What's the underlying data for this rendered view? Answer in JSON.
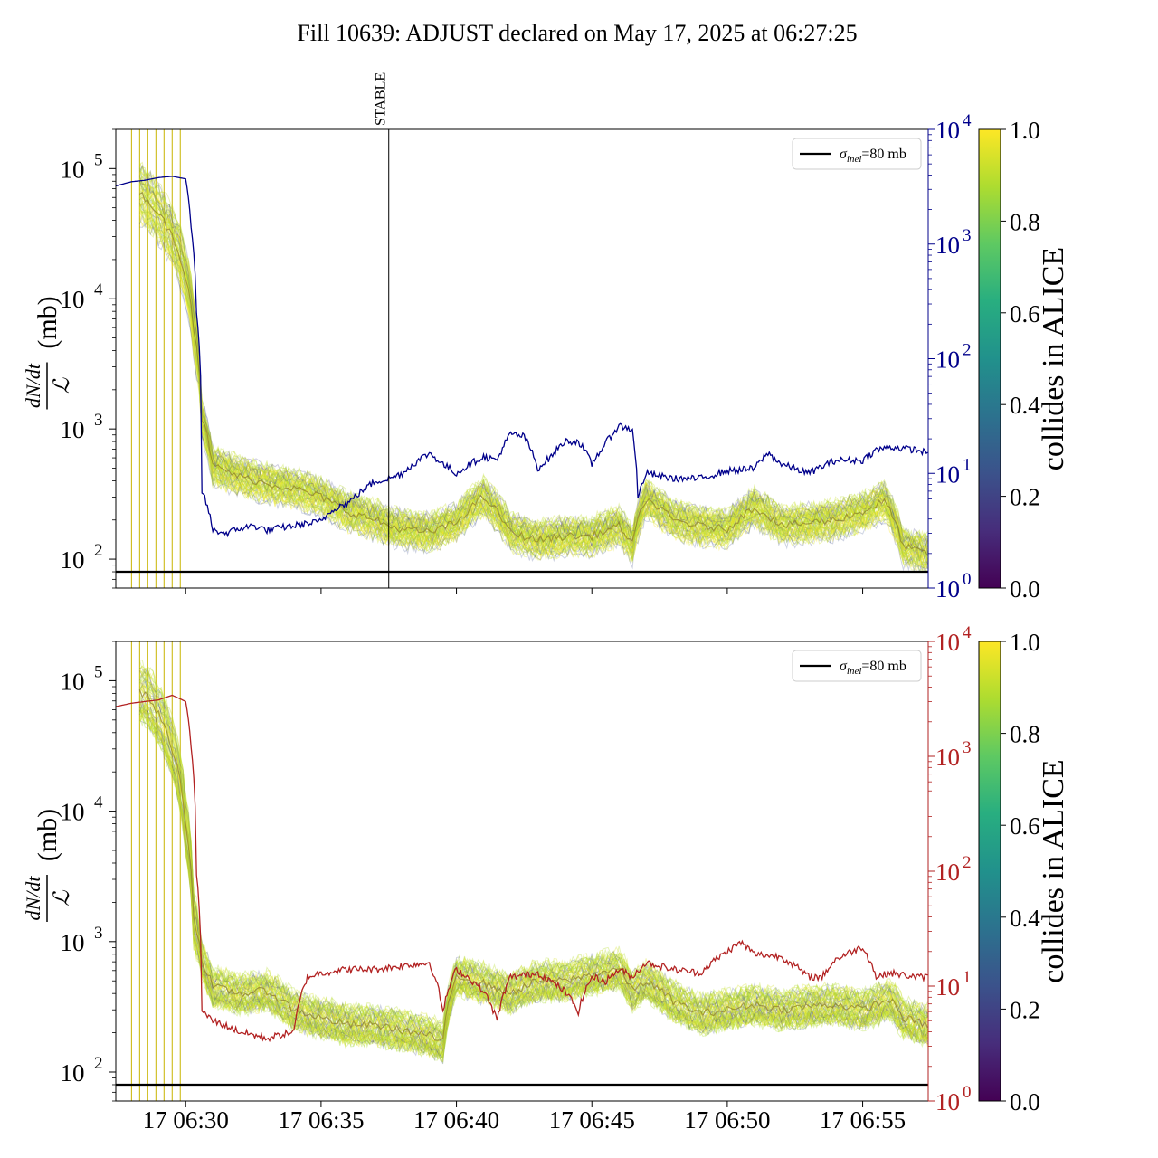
{
  "title": "Fill 10639: ADJUST declared on May 17, 2025 at 06:27:25",
  "chart_data": [
    {
      "type": "line",
      "panel": "top",
      "ylabel_fraction_num": "dN/dt",
      "ylabel_fraction_den": "ℒ",
      "ylabel_unit": "(mb)",
      "yscale": "log",
      "ylim": [
        60,
        200000
      ],
      "y_tick_labels": [
        "10",
        "10",
        "10",
        "10"
      ],
      "y_tick_exponents": [
        "2",
        "3",
        "4",
        "5"
      ],
      "right_axis": {
        "color": "#00008b",
        "yscale": "log",
        "ylim": [
          1,
          10000
        ],
        "tick_labels": [
          "10",
          "10",
          "10",
          "10",
          "10"
        ],
        "tick_exponents": [
          "0",
          "1",
          "2",
          "3",
          "4"
        ]
      },
      "xlim": [
        27.42,
        57.42
      ],
      "x_unit": "minutes after 06:00 on May 17",
      "x_tick_labels": [],
      "vline": {
        "x": 37.5,
        "label": "STABLE"
      },
      "legend": {
        "label": "σinel=80 mb",
        "label_main": "σ",
        "label_sub": "inel",
        "label_rest": "=80 mb",
        "placement": "top-right"
      },
      "hline_value": 80,
      "colorbar": {
        "label": "collides in ALICE",
        "ticks": [
          "0.0",
          "0.2",
          "0.4",
          "0.6",
          "0.8",
          "1.0"
        ],
        "colormap": "viridis"
      },
      "series_band": {
        "x": [
          27.4,
          28.5,
          29.5,
          30.3,
          30.6,
          31.0,
          32.0,
          33.0,
          34.0,
          35.0,
          36.0,
          37.0,
          37.5,
          38.0,
          39.0,
          40.0,
          41.0,
          42.0,
          43.0,
          44.0,
          45.0,
          46.0,
          46.5,
          47.0,
          48.0,
          49.0,
          50.0,
          51.0,
          52.0,
          53.0,
          54.0,
          55.0,
          55.8,
          56.5,
          57.4
        ],
        "median": [
          null,
          60000,
          30000,
          6000,
          1200,
          520,
          430,
          380,
          350,
          300,
          230,
          200,
          180,
          170,
          160,
          190,
          300,
          160,
          140,
          150,
          150,
          180,
          130,
          290,
          200,
          180,
          170,
          250,
          180,
          190,
          200,
          230,
          280,
          125,
          110
        ]
      },
      "series_right": {
        "name": "",
        "x": [
          27.4,
          28.0,
          28.5,
          29.0,
          29.5,
          30.0,
          30.2,
          30.4,
          30.6,
          31.0,
          31.5,
          32.0,
          32.5,
          33.0,
          34.0,
          35.0,
          35.5,
          36.0,
          36.5,
          37.0,
          37.5,
          38.0,
          39.0,
          39.5,
          40.0,
          40.5,
          41.0,
          41.5,
          42.0,
          42.5,
          43.0,
          43.5,
          44.0,
          44.5,
          45.0,
          45.5,
          46.0,
          46.5,
          46.7,
          47.0,
          47.5,
          48.0,
          49.0,
          50.0,
          51.0,
          51.5,
          52.0,
          53.0,
          54.0,
          55.0,
          55.5,
          56.0,
          57.0,
          57.4
        ],
        "y": [
          3200,
          3500,
          3600,
          3800,
          3900,
          3700,
          1400,
          250,
          7,
          3.2,
          3,
          3.3,
          3.5,
          3.2,
          3.5,
          3.8,
          5,
          5.5,
          7,
          8.5,
          9,
          10,
          15,
          12,
          10,
          12,
          14,
          13,
          22,
          21,
          11,
          14,
          19,
          19,
          12,
          18,
          26,
          24,
          6,
          10,
          9.5,
          9,
          9,
          10.5,
          11,
          15,
          12,
          10,
          13,
          13,
          16,
          17,
          16,
          15
        ]
      },
      "series_stripes": {
        "x": [
          28.0,
          28.3,
          28.6,
          28.9,
          29.2,
          29.5,
          29.8
        ]
      }
    },
    {
      "type": "line",
      "panel": "bottom",
      "ylabel_fraction_num": "dN/dt",
      "ylabel_fraction_den": "ℒ",
      "ylabel_unit": "(mb)",
      "yscale": "log",
      "ylim": [
        60,
        200000
      ],
      "y_tick_labels": [
        "10",
        "10",
        "10",
        "10"
      ],
      "y_tick_exponents": [
        "2",
        "3",
        "4",
        "5"
      ],
      "right_axis": {
        "color": "#b22222",
        "yscale": "log",
        "ylim": [
          1,
          10000
        ],
        "tick_labels": [
          "10",
          "10",
          "10",
          "10",
          "10"
        ],
        "tick_exponents": [
          "0",
          "1",
          "2",
          "3",
          "4"
        ]
      },
      "xlim": [
        27.42,
        57.42
      ],
      "x_unit": "minutes after 06:00 on May 17",
      "x_tick_labels": [
        "17 06:30",
        "17 06:35",
        "17 06:40",
        "17 06:45",
        "17 06:50",
        "17 06:55"
      ],
      "x_ticks": [
        30,
        35,
        40,
        45,
        50,
        55
      ],
      "legend": {
        "label": "σinel=80 mb",
        "label_main": "σ",
        "label_sub": "inel",
        "label_rest": "=80 mb",
        "placement": "top-right"
      },
      "hline_value": 80,
      "colorbar": {
        "label": "collides in ALICE",
        "ticks": [
          "0.0",
          "0.2",
          "0.4",
          "0.6",
          "0.8",
          "1.0"
        ],
        "colormap": "viridis"
      },
      "series_band": {
        "x": [
          28.5,
          29.5,
          30.0,
          30.3,
          30.6,
          31.0,
          32.0,
          33.0,
          34.0,
          35.0,
          36.0,
          37.0,
          38.0,
          39.0,
          39.5,
          40.0,
          41.0,
          42.0,
          43.0,
          44.0,
          45.0,
          46.0,
          46.5,
          47.0,
          48.0,
          49.0,
          50.0,
          51.0,
          52.0,
          53.0,
          54.0,
          55.0,
          56.0,
          56.5,
          57.4
        ],
        "median": [
          80000,
          30000,
          8000,
          1500,
          700,
          450,
          400,
          420,
          300,
          260,
          230,
          230,
          210,
          190,
          170,
          550,
          480,
          400,
          500,
          500,
          560,
          620,
          420,
          500,
          350,
          280,
          300,
          330,
          300,
          320,
          330,
          300,
          360,
          260,
          230
        ]
      },
      "series_right": {
        "name": "",
        "x": [
          27.4,
          28.0,
          29.0,
          29.5,
          30.0,
          30.2,
          30.4,
          30.6,
          31.0,
          32.0,
          33.0,
          34.0,
          34.5,
          35.0,
          36.0,
          37.0,
          38.0,
          39.0,
          39.5,
          40.0,
          41.0,
          41.5,
          42.0,
          43.0,
          44.0,
          44.5,
          45.0,
          45.5,
          46.0,
          46.5,
          47.0,
          48.0,
          49.0,
          50.0,
          50.5,
          51.0,
          52.0,
          53.0,
          53.5,
          54.0,
          55.0,
          55.5,
          56.0,
          57.0,
          57.4
        ],
        "y": [
          2700,
          2900,
          3100,
          3400,
          3000,
          1200,
          90,
          6,
          5,
          4,
          3.5,
          4,
          12,
          13,
          14,
          14,
          15,
          16,
          6,
          14,
          9,
          5,
          12,
          13,
          9,
          6,
          12,
          11,
          14,
          12,
          16,
          14,
          13,
          20,
          24,
          19,
          18,
          12,
          12,
          17,
          22,
          12,
          13,
          12,
          12
        ]
      },
      "series_stripes": {
        "x": [
          28.0,
          28.3,
          28.6,
          28.9,
          29.2,
          29.5,
          29.8
        ]
      }
    }
  ]
}
